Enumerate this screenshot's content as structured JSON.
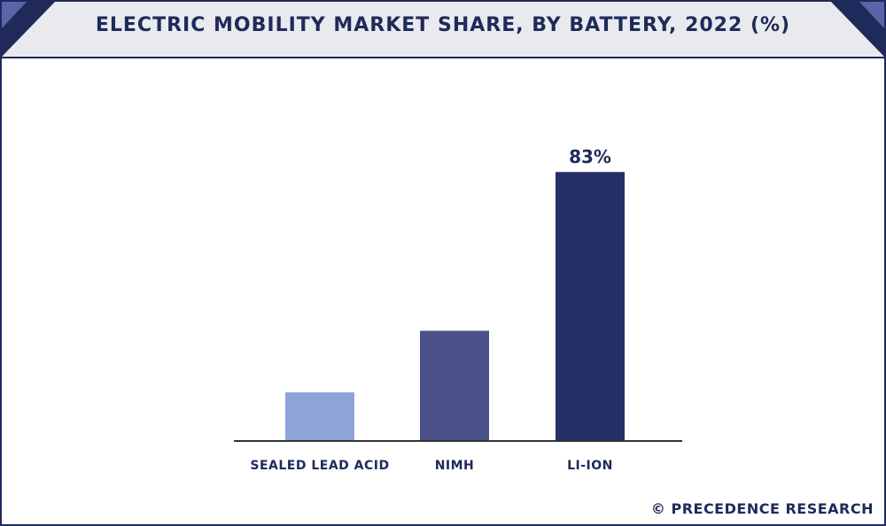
{
  "watermark": "© PRECEDENCE RESEARCH",
  "colors": {
    "frame": "#1f2a5a",
    "header_bg": "#e9eaee",
    "corner_dark": "#1f2a5a",
    "corner_light": "#5a64a8",
    "axis": "#333333"
  },
  "chart_data": {
    "type": "bar",
    "title": "ELECTRIC MOBILITY MARKET SHARE, BY BATTERY, 2022 (%)",
    "categories": [
      "SEALED LEAD ACID",
      "NIMH",
      "LI-ION"
    ],
    "values": [
      15,
      34,
      83
    ],
    "bar_colors": [
      "#8fa4d6",
      "#4a5189",
      "#262e66"
    ],
    "data_labels": [
      "",
      "",
      "83%"
    ],
    "ylim": [
      0,
      100
    ],
    "grid": false,
    "legend": "none",
    "xlabel": "",
    "ylabel": ""
  }
}
